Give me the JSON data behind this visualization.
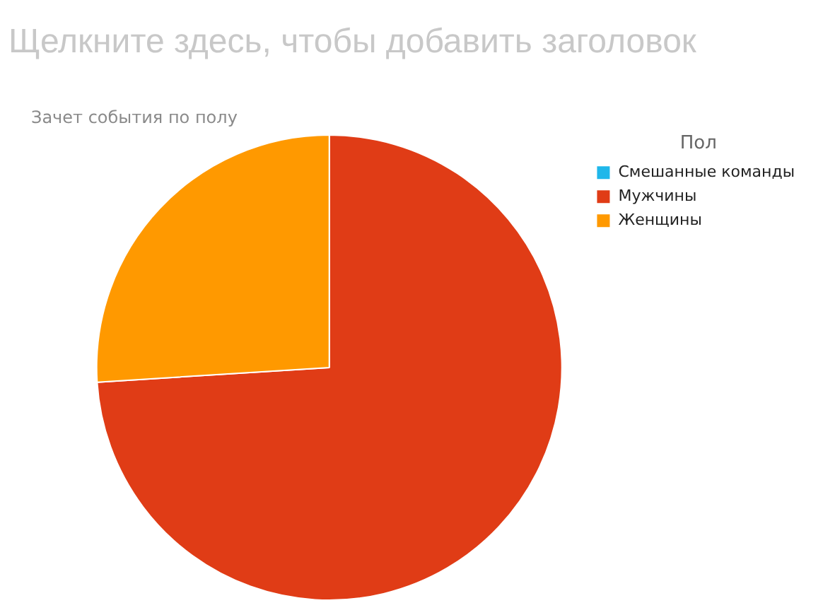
{
  "chart_data": {
    "type": "pie",
    "title": "Щелкните здесь, чтобы добавить заголовок",
    "subtitle": "Зачет события по полу",
    "legend_title": "Пол",
    "legend": "top right",
    "categories": [
      "Смешанные команды",
      "Мужчины",
      "Женщины"
    ],
    "values": [
      0,
      74,
      26
    ],
    "colors": [
      "#1fb7ea",
      "#e03c16",
      "#ff9900"
    ]
  }
}
